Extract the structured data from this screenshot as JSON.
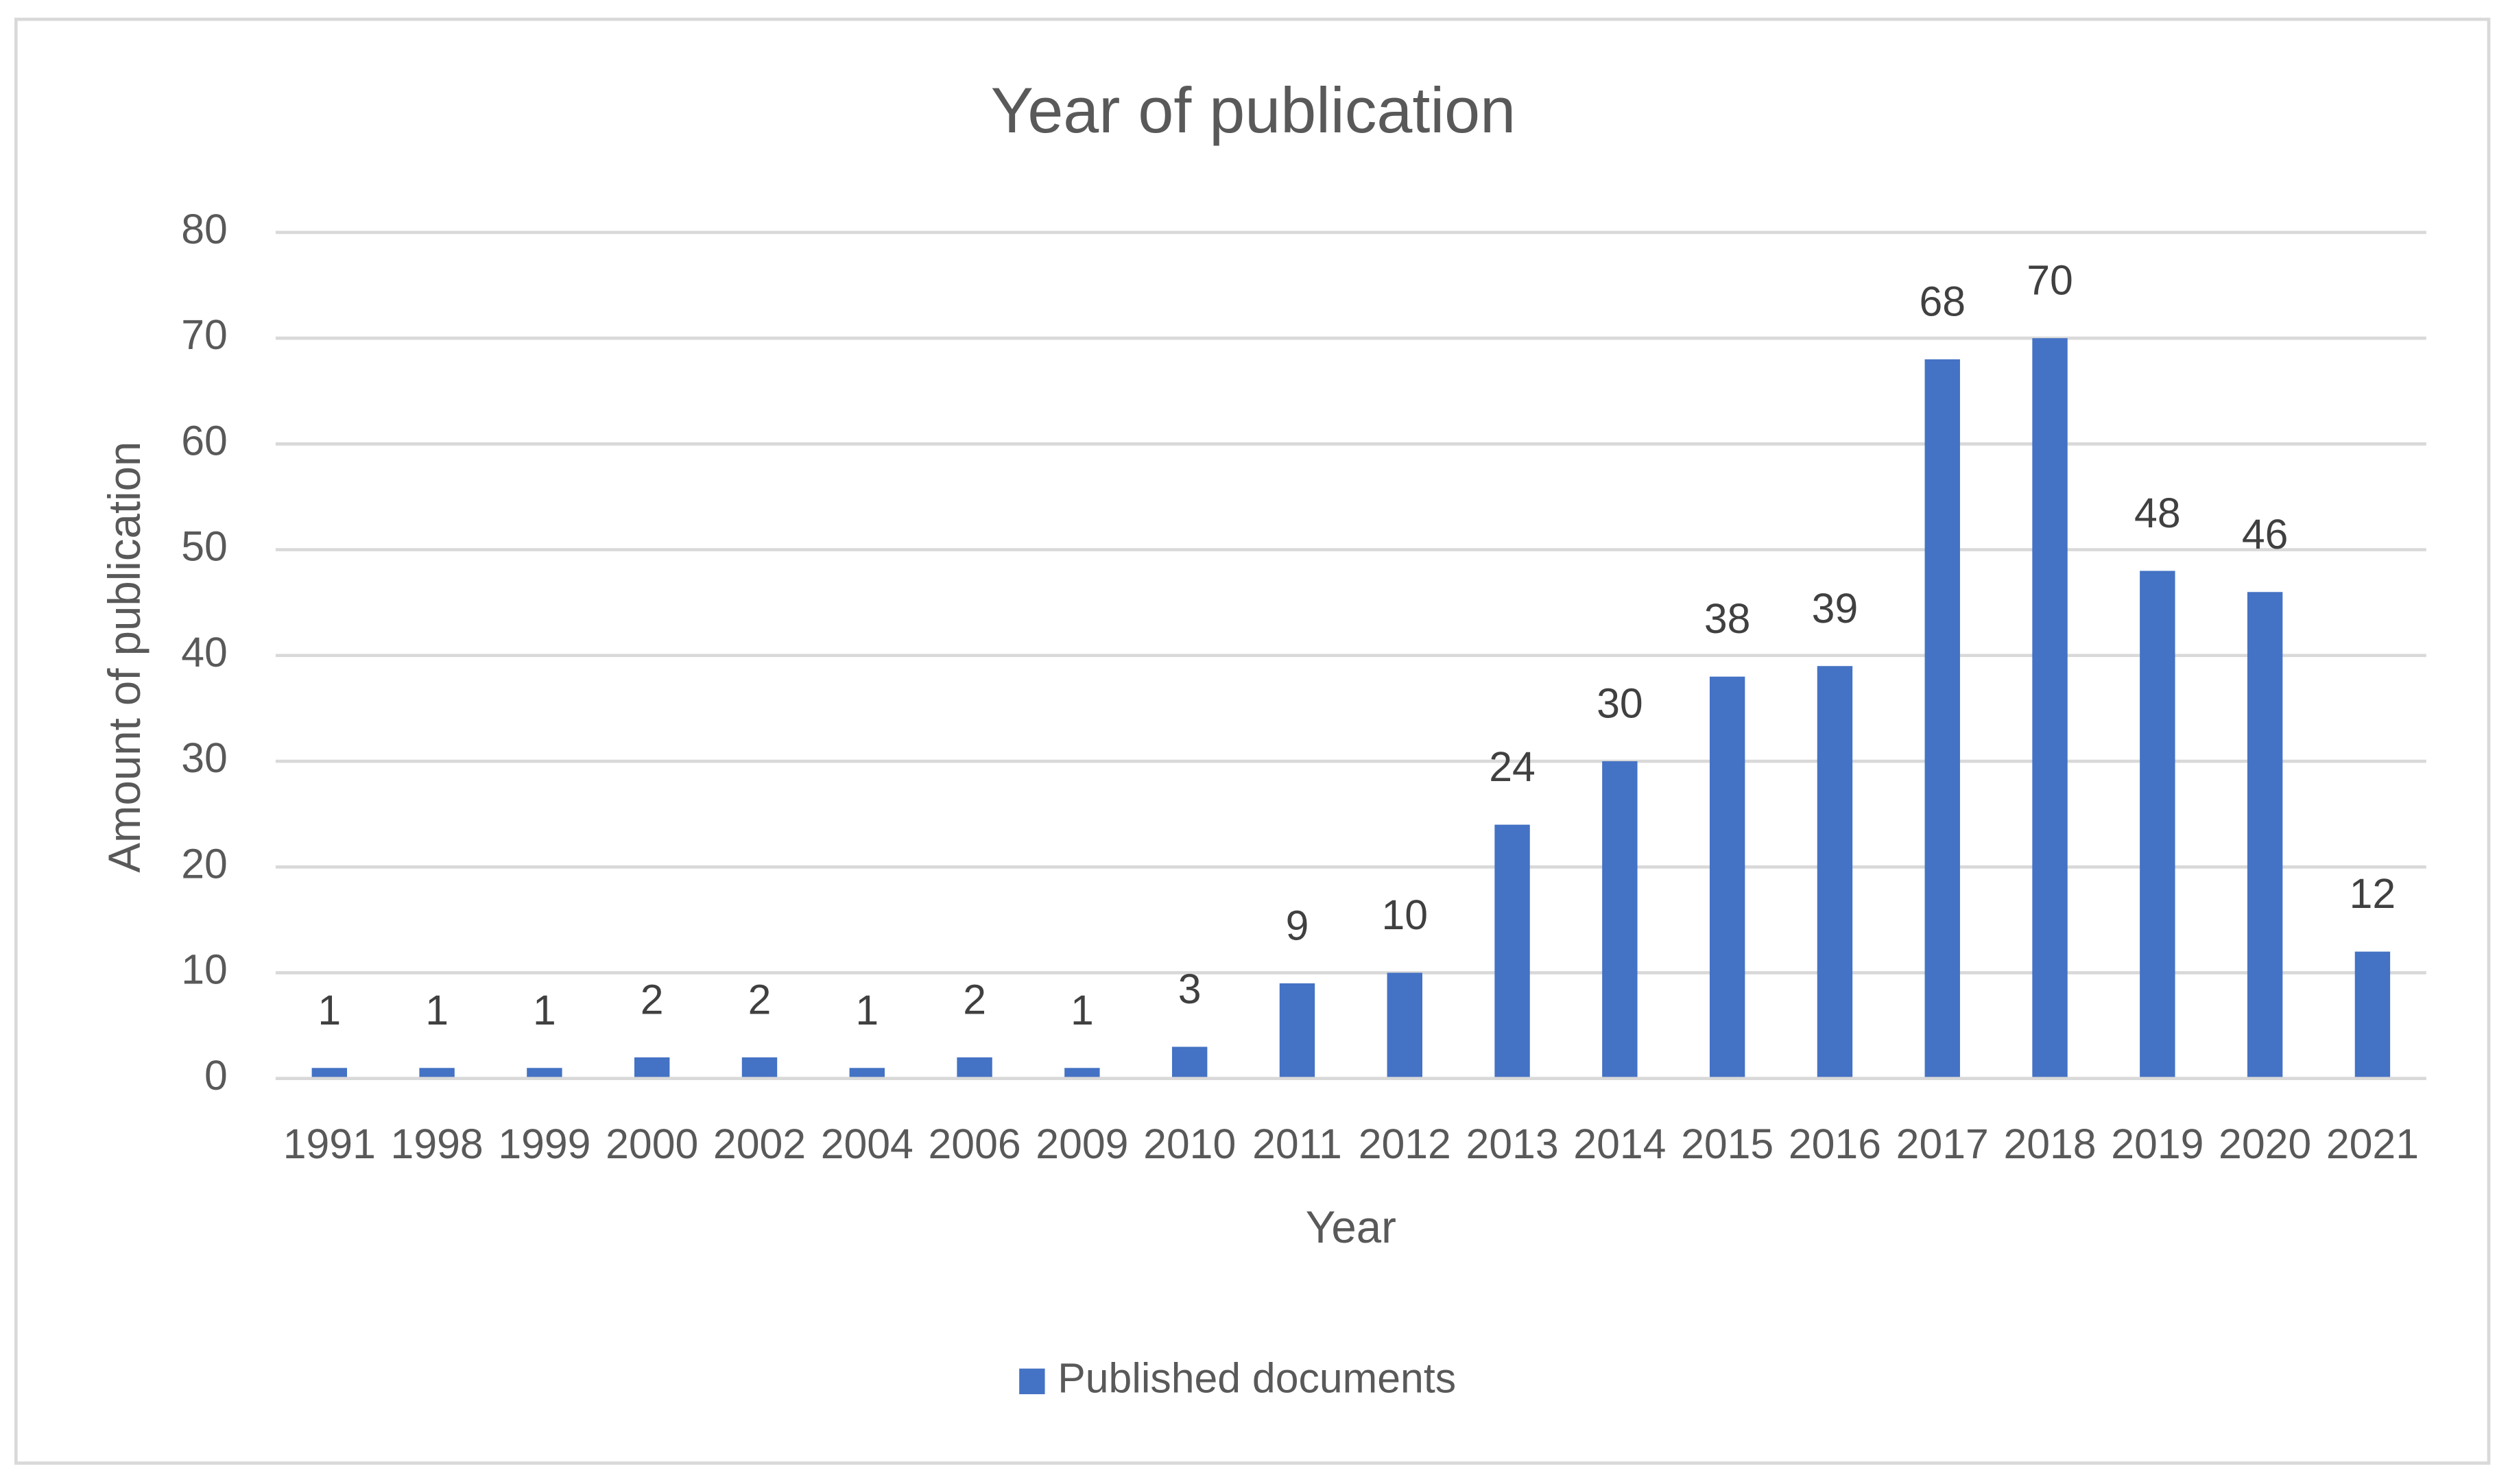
{
  "chart_data": {
    "type": "bar",
    "title": "Year of publication",
    "x_label": "Year",
    "y_label": "Amount of publication",
    "categories": [
      "1991",
      "1998",
      "1999",
      "2000",
      "2002",
      "2004",
      "2006",
      "2009",
      "2010",
      "2011",
      "2012",
      "2013",
      "2014",
      "2015",
      "2016",
      "2017",
      "2018",
      "2019",
      "2020",
      "2021"
    ],
    "series": [
      {
        "name": "Published documents",
        "color": "#4472c4",
        "values": [
          1,
          1,
          1,
          2,
          2,
          1,
          2,
          1,
          3,
          9,
          10,
          24,
          30,
          38,
          39,
          68,
          70,
          48,
          46,
          12
        ]
      }
    ],
    "ylim": [
      0,
      80
    ],
    "yticks": [
      0,
      10,
      20,
      30,
      40,
      50,
      60,
      70,
      80
    ],
    "grid": true,
    "legend": "bottom"
  }
}
